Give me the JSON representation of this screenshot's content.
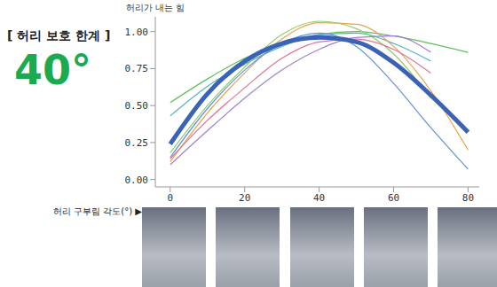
{
  "chart_data": {
    "type": "line",
    "title": "[ 허리 보호 한계 ]",
    "subtitle": "40°",
    "y_label": "허리가 내는 힘",
    "x_label": "허리 구부림 각도(°) ▶",
    "x": [
      0,
      10,
      20,
      30,
      40,
      50,
      60,
      70,
      80
    ],
    "series": [
      {
        "color": "#5cbf5c",
        "values": [
          0.52,
          0.68,
          0.82,
          0.92,
          0.98,
          1.0,
          0.97,
          0.92,
          0.86
        ]
      },
      {
        "color": "#4fb3bf",
        "values": [
          0.43,
          0.63,
          0.78,
          0.9,
          0.98,
          0.99,
          0.92,
          0.8,
          null
        ]
      },
      {
        "color": "#e8a050",
        "values": [
          0.12,
          0.45,
          0.72,
          0.95,
          1.06,
          1.05,
          0.9,
          0.6,
          0.2
        ]
      },
      {
        "color": "#8fd06a",
        "values": [
          0.18,
          0.5,
          0.76,
          0.98,
          1.07,
          1.02,
          0.85,
          0.55,
          null
        ]
      },
      {
        "color": "#e07090",
        "values": [
          0.14,
          0.4,
          0.62,
          0.82,
          0.93,
          0.95,
          0.88,
          0.72,
          null
        ]
      },
      {
        "color": "#a080d0",
        "values": [
          0.1,
          0.33,
          0.55,
          0.74,
          0.88,
          0.96,
          0.97,
          0.86,
          null
        ]
      },
      {
        "color": "#6090e0",
        "values": [
          0.15,
          0.48,
          0.74,
          0.92,
          0.99,
          0.9,
          0.65,
          0.35,
          0.07
        ]
      },
      {
        "color": "#3a62b5",
        "values": [
          0.24,
          0.58,
          0.8,
          0.92,
          0.96,
          0.93,
          0.79,
          0.57,
          0.32
        ]
      }
    ],
    "xlim": [
      -4,
      83
    ],
    "xticks": [
      0,
      20,
      40,
      60,
      80
    ],
    "ylim": [
      -0.05,
      1.1
    ],
    "yticks": [
      {
        "value": 0,
        "label": "0.00"
      },
      {
        "value": 0.25,
        "label": "0.25"
      },
      {
        "value": 0.5,
        "label": "0.50"
      },
      {
        "value": 0.75,
        "label": "0.75"
      },
      {
        "value": 1,
        "label": "1.00"
      }
    ],
    "grid": false
  }
}
